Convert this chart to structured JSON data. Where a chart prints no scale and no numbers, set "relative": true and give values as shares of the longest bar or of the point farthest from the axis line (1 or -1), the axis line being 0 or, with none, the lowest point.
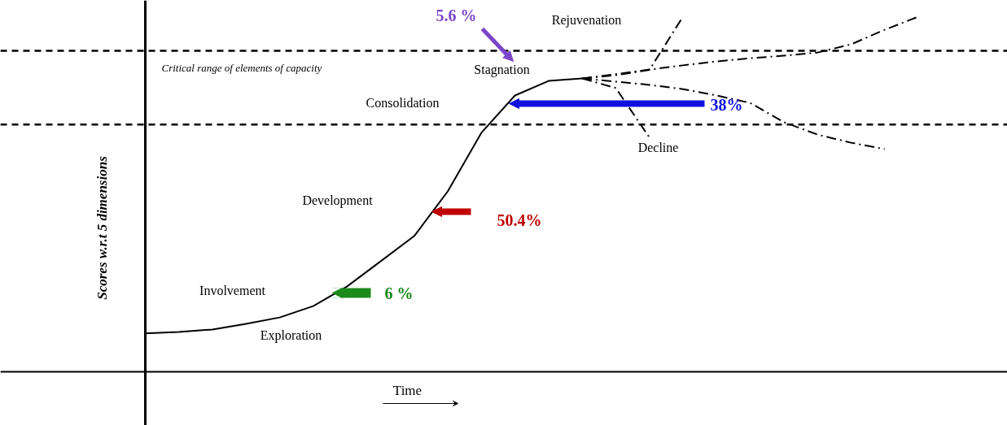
{
  "chart_data": {
    "type": "line",
    "relative": true,
    "xlabel": "Time",
    "ylabel": "Scores w.r.t 5 dimensions",
    "grid": false,
    "tick_labels": false,
    "marker": "none",
    "categories": [
      null,
      null,
      null,
      null,
      null,
      null,
      null,
      null,
      null,
      null,
      null,
      null,
      null,
      null,
      null,
      null,
      null,
      null,
      null,
      null,
      null,
      null,
      null,
      null
    ],
    "series": [
      {
        "color": "#000000",
        "line_style": "solid",
        "values": [
          0.108,
          0.112,
          0.119,
          0.135,
          0.153,
          0.185,
          0.24,
          0.311,
          0.382,
          0.508,
          0.673,
          0.778,
          0.819,
          0.826,
          null,
          null,
          null,
          null,
          null,
          null,
          null,
          null,
          null,
          null
        ]
      },
      {
        "color": "#000000",
        "line_style": "dashdot",
        "values": [
          null,
          null,
          null,
          null,
          null,
          null,
          null,
          null,
          null,
          null,
          null,
          null,
          null,
          0.826,
          0.835,
          0.85,
          1.0,
          null,
          null,
          null,
          null,
          null,
          null,
          null
        ]
      },
      {
        "color": "#000000",
        "line_style": "dashdot",
        "values": [
          null,
          null,
          null,
          null,
          null,
          null,
          null,
          null,
          null,
          null,
          null,
          null,
          null,
          0.826,
          0.838,
          0.851,
          0.863,
          0.874,
          0.883,
          0.89,
          0.899,
          0.922,
          0.963,
          1.0
        ]
      },
      {
        "color": "#000000",
        "line_style": "dashdot",
        "values": [
          null,
          null,
          null,
          null,
          null,
          null,
          null,
          null,
          null,
          null,
          null,
          null,
          null,
          0.826,
          0.799,
          0.66,
          null,
          null,
          null,
          null,
          null,
          null,
          null,
          null
        ]
      },
      {
        "color": "#000000",
        "line_style": "dashdot",
        "values": [
          null,
          null,
          null,
          null,
          null,
          null,
          null,
          null,
          null,
          null,
          null,
          null,
          null,
          0.826,
          0.817,
          0.808,
          0.796,
          0.778,
          0.757,
          0.703,
          0.668,
          0.645,
          0.627,
          null
        ]
      }
    ],
    "ref_lines": [
      {
        "axis": "y",
        "value": 0.904,
        "color": "#000000",
        "line_style": "dashed"
      },
      {
        "axis": "y",
        "value": 0.696,
        "color": "#000000",
        "line_style": "dashed"
      }
    ],
    "annotations": [
      "6 %",
      "50.4%",
      "38%",
      "5.6 %",
      "Exploration",
      "Involvement",
      "Development",
      "Consolidation",
      "Stagnation",
      "Rejuvenation",
      "Decline",
      "Critical range of elements of capacity"
    ]
  }
}
